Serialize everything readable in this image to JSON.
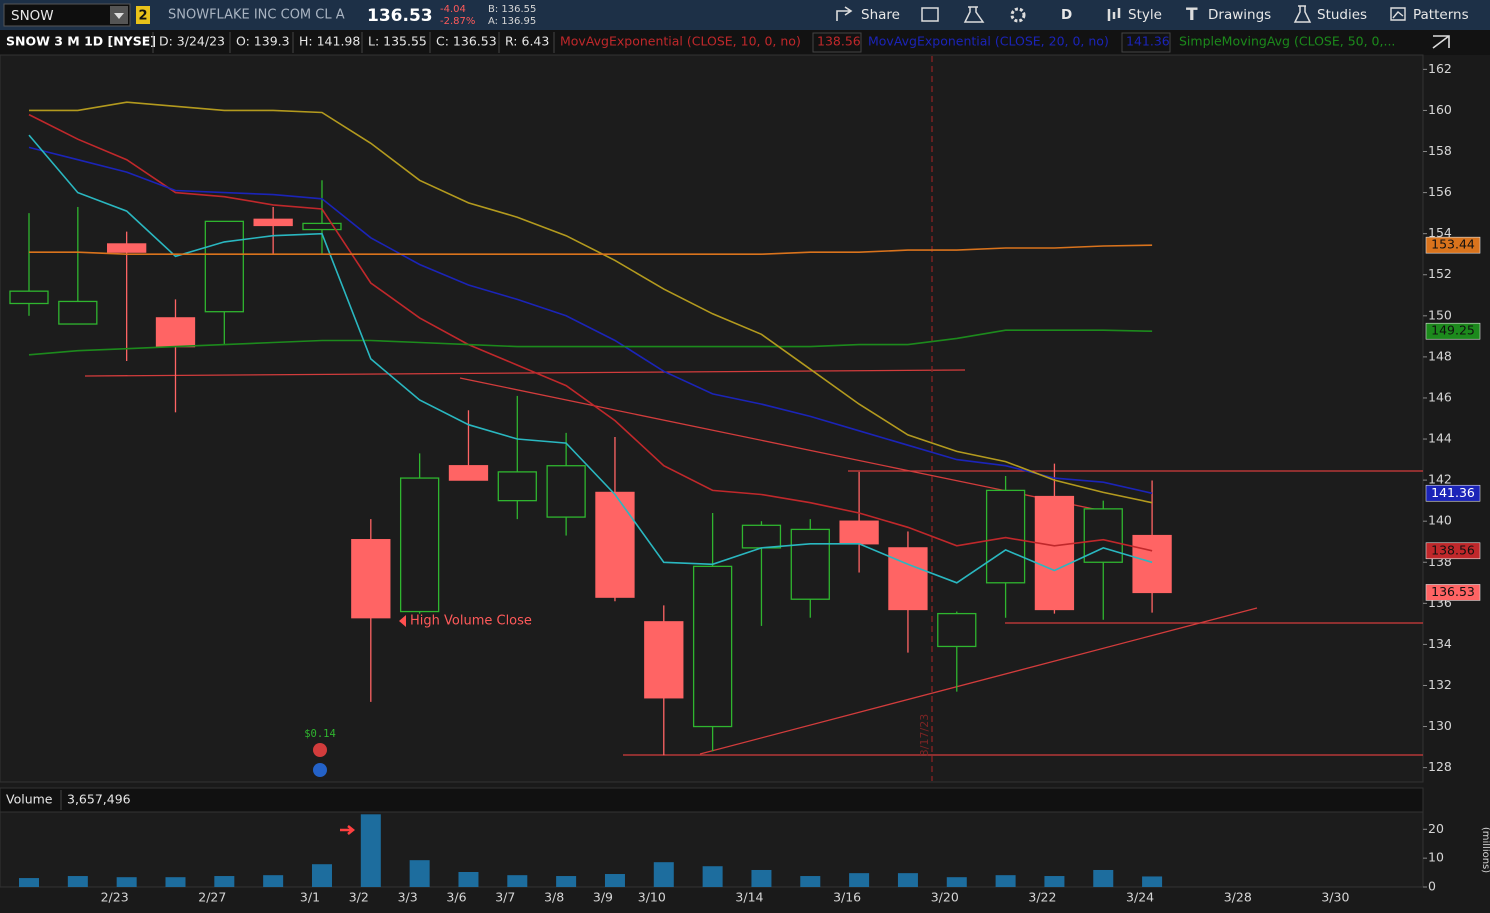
{
  "toolbar": {
    "symbol": "SNOW",
    "link": "2",
    "company": "SNOWFLAKE INC COM CL A",
    "last": "136.53",
    "change": "-4.04",
    "change_pct": "-2.87%",
    "bid": "B: 136.55",
    "ask": "A: 136.95",
    "buttons": [
      "Share",
      "D",
      "Style",
      "Drawings",
      "Studies",
      "Patterns"
    ]
  },
  "info_bar": {
    "symbol": "SNOW 3 M 1D [NYSE]",
    "date": "D: 3/24/23",
    "open": "O: 139.3",
    "high": "H: 141.98",
    "low": "L: 135.55",
    "close": "C: 136.53",
    "range": "R: 6.43"
  },
  "chart_data": [
    {
      "type": "candlestick",
      "categories": [
        null,
        null,
        "2/23",
        null,
        "2/27",
        null,
        "3/1",
        "3/2",
        "3/3",
        "3/6",
        "3/7",
        "3/8",
        "3/9",
        "3/10",
        null,
        "3/14",
        null,
        "3/16",
        null,
        "3/20",
        null,
        "3/22",
        null,
        "3/24",
        null,
        "3/28",
        null,
        "3/30",
        null
      ],
      "open": [
        150.6,
        149.6,
        153.5,
        149.9,
        150.2,
        154.7,
        154.2,
        139.1,
        135.6,
        142.7,
        141.0,
        140.2,
        141.4,
        135.1,
        130.0,
        138.7,
        136.2,
        140.0,
        138.7,
        133.9,
        137.0,
        141.2,
        138.0,
        139.3,
        null,
        null,
        null,
        null,
        null
      ],
      "high": [
        155.0,
        155.3,
        154.1,
        150.8,
        154.6,
        155.3,
        156.6,
        140.1,
        143.3,
        145.4,
        146.1,
        144.3,
        144.1,
        135.9,
        140.4,
        140.0,
        140.1,
        142.4,
        139.5,
        135.6,
        142.2,
        142.8,
        141.0,
        141.98,
        null,
        null,
        null,
        null,
        null
      ],
      "low": [
        150.0,
        149.6,
        147.8,
        145.3,
        148.6,
        153.0,
        153.0,
        131.2,
        135.5,
        142.0,
        140.1,
        139.3,
        136.1,
        128.6,
        128.8,
        134.9,
        135.3,
        137.5,
        133.6,
        131.7,
        135.3,
        135.5,
        135.2,
        135.55,
        null,
        null,
        null,
        null,
        null
      ],
      "close": [
        151.2,
        150.7,
        153.1,
        148.5,
        154.6,
        154.4,
        154.5,
        135.3,
        142.1,
        142.0,
        142.4,
        142.7,
        136.3,
        131.4,
        137.8,
        139.8,
        139.6,
        138.9,
        135.7,
        135.5,
        141.5,
        135.7,
        140.6,
        136.53,
        null,
        null,
        null,
        null,
        null
      ],
      "up_color": "#2fb52f",
      "down_color": "#ff6464",
      "series": [
        {
          "name": "MovAvgExponential (CLOSE, 10, 0, no)",
          "color": "#c0282b",
          "values": [
            159.8,
            158.6,
            157.6,
            156.0,
            155.8,
            155.4,
            155.2,
            151.6,
            149.9,
            148.6,
            147.6,
            146.6,
            144.9,
            142.7,
            141.5,
            141.3,
            140.9,
            140.4,
            139.7,
            138.8,
            139.2,
            138.8,
            139.1,
            138.56,
            null,
            null,
            null,
            null,
            null
          ]
        },
        {
          "name": "MovAvgExponential (CLOSE, 20, 0, no)",
          "color": "#1b24b8",
          "values": [
            158.2,
            157.6,
            157.0,
            156.1,
            156.0,
            155.9,
            155.7,
            153.8,
            152.5,
            151.5,
            150.8,
            150.0,
            148.8,
            147.3,
            146.2,
            145.7,
            145.1,
            144.4,
            143.7,
            143.0,
            142.7,
            142.1,
            141.9,
            141.36,
            null,
            null,
            null,
            null,
            null
          ]
        },
        {
          "name": "SimpleMovingAvg (CLOSE, 50, 0,...",
          "color": "#1c8a1c",
          "values": [
            148.1,
            148.3,
            148.4,
            148.5,
            148.6,
            148.7,
            148.8,
            148.8,
            148.7,
            148.6,
            148.5,
            148.5,
            148.5,
            148.5,
            148.5,
            148.5,
            148.5,
            148.6,
            148.6,
            148.9,
            149.3,
            149.3,
            149.3,
            149.25,
            null,
            null,
            null,
            null,
            null
          ]
        },
        {
          "color": "#2ab7c0",
          "values": [
            158.8,
            156.0,
            155.1,
            152.9,
            153.6,
            153.9,
            154.0,
            147.9,
            145.9,
            144.7,
            144.0,
            143.8,
            141.3,
            138.0,
            137.9,
            138.7,
            138.9,
            138.9,
            137.9,
            137.0,
            138.6,
            137.6,
            138.7,
            138.0,
            null,
            null,
            null,
            null,
            null
          ]
        },
        {
          "color": "#b39a1e",
          "values": [
            160.0,
            160.0,
            160.4,
            160.2,
            160.0,
            160.0,
            159.9,
            158.4,
            156.6,
            155.5,
            154.8,
            153.9,
            152.7,
            151.3,
            150.1,
            149.1,
            147.4,
            145.7,
            144.2,
            143.4,
            142.9,
            142.0,
            141.4,
            140.9,
            null,
            null,
            null,
            null,
            null
          ]
        },
        {
          "color": "#d9731c",
          "values": [
            153.1,
            153.1,
            153.0,
            153.0,
            153.0,
            153.0,
            153.0,
            153.0,
            153.0,
            153.0,
            153.0,
            153.0,
            153.0,
            153.0,
            153.0,
            153.0,
            153.1,
            153.1,
            153.2,
            153.2,
            153.3,
            153.3,
            153.4,
            153.44,
            null,
            null,
            null,
            null,
            null
          ]
        }
      ],
      "ylim": [
        127.3,
        162.7
      ],
      "yticks": [
        128,
        130,
        132,
        134,
        136,
        138,
        140,
        142,
        144,
        146,
        148,
        150,
        152,
        154,
        156,
        158,
        160,
        162
      ],
      "annotations": [
        "High Volume Close",
        "$0.14",
        "3/17/23"
      ]
    },
    {
      "type": "bar",
      "title": "Volume",
      "color": "#1d6d9e",
      "y_label": "(millions)",
      "values": [
        3.1,
        3.8,
        3.4,
        3.4,
        3.8,
        4.1,
        7.9,
        25.2,
        9.3,
        5.2,
        4.1,
        3.8,
        4.5,
        8.6,
        7.2,
        5.9,
        3.8,
        4.8,
        4.8,
        3.4,
        4.1,
        3.8,
        5.9,
        3.657496,
        null,
        null,
        null,
        null,
        null
      ],
      "value_labels": [
        null,
        null,
        null,
        null,
        null,
        null,
        null,
        null,
        null,
        null,
        null,
        null,
        null,
        null,
        null,
        null,
        null,
        null,
        null,
        null,
        null,
        null,
        null,
        "3,657,496",
        null,
        null,
        null,
        null,
        null
      ],
      "ylim": [
        0,
        26
      ],
      "yticks": [
        0,
        10,
        20
      ]
    }
  ]
}
